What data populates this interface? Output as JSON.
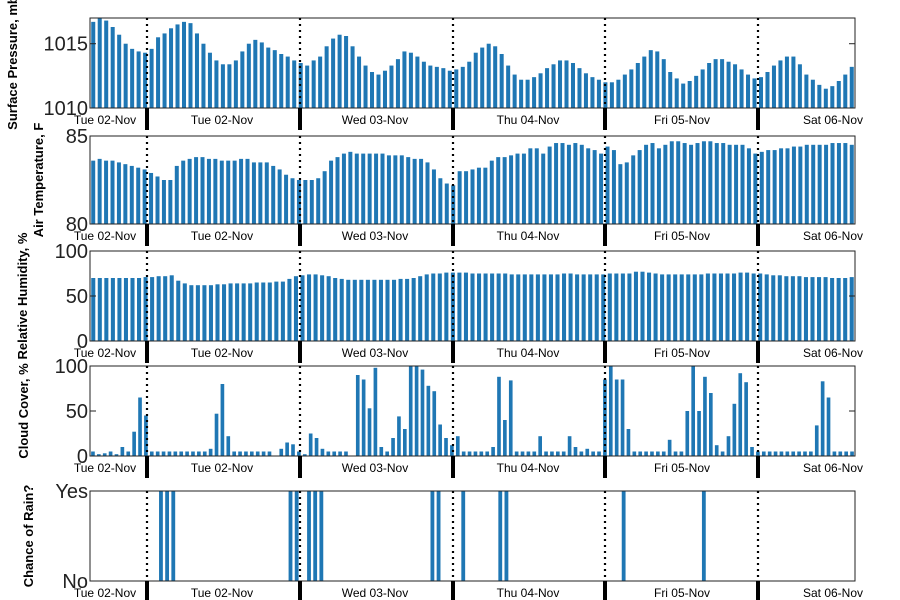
{
  "chart_data": [
    {
      "type": "bar",
      "ylabel": "Surface Pressure, mb",
      "ylim": [
        1010,
        1017
      ],
      "yticks": [
        {
          "value": 1010,
          "label": "1010"
        },
        {
          "value": 1015,
          "label": "1015"
        }
      ],
      "xticklabels": [
        "Tue 02-Nov",
        "Tue 02-Nov",
        "Wed 03-Nov",
        "Thu 04-Nov",
        "Fri 05-Nov",
        "Sat 06-Nov"
      ],
      "color": "#1f77b4",
      "values": [
        1016.7,
        1017.0,
        1016.8,
        1016.3,
        1015.7,
        1015.0,
        1014.6,
        1014.4,
        1014.3,
        1014.6,
        1015.5,
        1015.8,
        1016.2,
        1016.5,
        1016.7,
        1016.6,
        1015.8,
        1015.0,
        1014.3,
        1013.7,
        1013.4,
        1013.4,
        1013.7,
        1014.4,
        1015.0,
        1015.3,
        1015.1,
        1014.7,
        1014.5,
        1014.2,
        1014.0,
        1013.7,
        1013.5,
        1013.3,
        1013.7,
        1014.0,
        1014.8,
        1015.4,
        1015.7,
        1015.6,
        1014.8,
        1014.0,
        1013.3,
        1012.8,
        1012.6,
        1012.9,
        1013.3,
        1013.8,
        1014.4,
        1014.3,
        1014.0,
        1013.6,
        1013.3,
        1013.2,
        1013.1,
        1012.9,
        1013.0,
        1013.2,
        1013.6,
        1014.3,
        1014.7,
        1015.0,
        1014.8,
        1014.2,
        1013.3,
        1012.6,
        1012.2,
        1012.2,
        1012.4,
        1012.7,
        1013.1,
        1013.4,
        1013.7,
        1013.7,
        1013.5,
        1013.1,
        1012.7,
        1012.4,
        1012.2,
        1012.0,
        1012.0,
        1012.2,
        1012.6,
        1013.0,
        1013.5,
        1014.0,
        1014.5,
        1014.4,
        1013.8,
        1012.8,
        1012.3,
        1011.9,
        1012.1,
        1012.5,
        1013.0,
        1013.5,
        1013.8,
        1013.8,
        1013.6,
        1013.4,
        1013.0,
        1012.6,
        1012.3,
        1012.4,
        1012.8,
        1013.3,
        1013.7,
        1014.0,
        1014.0,
        1013.4,
        1012.6,
        1012.2,
        1011.8,
        1011.5,
        1011.7,
        1012.1,
        1012.6,
        1013.2
      ]
    },
    {
      "type": "bar",
      "ylabel": "Air Temperature, F",
      "ylim": [
        80,
        85
      ],
      "yticks": [
        {
          "value": 80,
          "label": "80"
        },
        {
          "value": 85,
          "label": "85"
        }
      ],
      "xticklabels": [
        "Tue 02-Nov",
        "Tue 02-Nov",
        "Wed 03-Nov",
        "Thu 04-Nov",
        "Fri 05-Nov",
        "Sat 06-Nov"
      ],
      "color": "#1f77b4",
      "values": [
        83.6,
        83.7,
        83.6,
        83.6,
        83.5,
        83.4,
        83.3,
        83.2,
        83.1,
        82.9,
        82.7,
        82.5,
        82.5,
        83.3,
        83.6,
        83.7,
        83.8,
        83.8,
        83.7,
        83.7,
        83.6,
        83.6,
        83.6,
        83.7,
        83.7,
        83.5,
        83.5,
        83.5,
        83.3,
        83.1,
        82.8,
        82.6,
        82.5,
        82.5,
        82.5,
        82.6,
        83.0,
        83.6,
        83.8,
        84.0,
        84.1,
        84.0,
        84.0,
        84.0,
        84.0,
        84.0,
        83.9,
        83.9,
        83.9,
        83.8,
        83.7,
        83.7,
        83.5,
        83.1,
        82.6,
        82.3,
        82.2,
        83.0,
        83.0,
        83.1,
        83.2,
        83.2,
        83.6,
        83.8,
        83.8,
        83.9,
        84.0,
        84.0,
        84.3,
        84.3,
        84.0,
        84.4,
        84.6,
        84.6,
        84.5,
        84.6,
        84.5,
        84.3,
        84.2,
        84.0,
        84.4,
        84.2,
        83.4,
        83.5,
        83.9,
        84.2,
        84.5,
        84.6,
        84.3,
        84.5,
        84.7,
        84.7,
        84.6,
        84.5,
        84.6,
        84.7,
        84.7,
        84.6,
        84.6,
        84.5,
        84.5,
        84.5,
        84.3,
        84.0,
        84.1,
        84.2,
        84.2,
        84.3,
        84.3,
        84.4,
        84.4,
        84.5,
        84.5,
        84.5,
        84.5,
        84.6,
        84.6,
        84.6,
        84.5
      ]
    },
    {
      "type": "bar",
      "ylabel": "Relative Humidity, %",
      "ylim": [
        0,
        100
      ],
      "yticks": [
        {
          "value": 0,
          "label": "0"
        },
        {
          "value": 50,
          "label": "50"
        },
        {
          "value": 100,
          "label": "100"
        }
      ],
      "xticklabels": [
        "Tue 02-Nov",
        "Tue 02-Nov",
        "Wed 03-Nov",
        "Thu 04-Nov",
        "Fri 05-Nov",
        "Sat 06-Nov"
      ],
      "color": "#1f77b4",
      "values": [
        70,
        70,
        70,
        70,
        70,
        70,
        70,
        70,
        71,
        71,
        72,
        72,
        73,
        67,
        64,
        62,
        62,
        62,
        62,
        63,
        63,
        64,
        64,
        64,
        64,
        65,
        65,
        65,
        66,
        66,
        69,
        72,
        73,
        74,
        74,
        73,
        72,
        70,
        69,
        68,
        68,
        68,
        68,
        68,
        68,
        68,
        68,
        69,
        69,
        70,
        72,
        74,
        75,
        75,
        76,
        76,
        76,
        76,
        75,
        75,
        75,
        75,
        75,
        75,
        74,
        74,
        74,
        74,
        74,
        74,
        74,
        74,
        75,
        75,
        74,
        74,
        74,
        74,
        74,
        75,
        75,
        75,
        75,
        77,
        77,
        76,
        75,
        74,
        74,
        74,
        74,
        74,
        74,
        74,
        75,
        75,
        75,
        75,
        75,
        76,
        76,
        75,
        75,
        74,
        73,
        73,
        72,
        72,
        72,
        71,
        71,
        71,
        71,
        70,
        70,
        70,
        71
      ]
    },
    {
      "type": "bar",
      "ylabel": "Cloud Cover, %",
      "ylim": [
        0,
        100
      ],
      "yticks": [
        {
          "value": 0,
          "label": "0"
        },
        {
          "value": 50,
          "label": "50"
        },
        {
          "value": 100,
          "label": "100"
        }
      ],
      "xticklabels": [
        "Tue 02-Nov",
        "Tue 02-Nov",
        "Wed 03-Nov",
        "Thu 04-Nov",
        "Fri 05-Nov",
        "Sat 06-Nov"
      ],
      "color": "#1f77b4",
      "values": [
        5,
        2,
        3,
        5,
        2,
        10,
        5,
        27,
        65,
        45,
        5,
        5,
        5,
        5,
        5,
        5,
        5,
        5,
        5,
        5,
        8,
        47,
        80,
        22,
        5,
        5,
        5,
        5,
        5,
        5,
        5,
        0,
        8,
        15,
        13,
        5,
        2,
        25,
        20,
        8,
        5,
        5,
        5,
        5,
        0,
        90,
        85,
        53,
        98,
        10,
        5,
        20,
        44,
        30,
        100,
        100,
        96,
        78,
        72,
        35,
        20,
        12,
        22,
        5,
        5,
        5,
        5,
        5,
        10,
        88,
        40,
        84,
        5,
        5,
        5,
        5,
        22,
        5,
        5,
        5,
        5,
        22,
        10,
        5,
        8,
        5,
        5,
        85,
        100,
        85,
        85,
        30,
        5,
        5,
        5,
        5,
        5,
        5,
        18,
        5,
        5,
        50,
        100,
        50,
        88,
        70,
        12,
        5,
        22,
        58,
        92,
        82,
        10,
        5,
        5,
        5,
        5,
        5,
        5,
        5,
        5,
        5,
        5,
        34,
        83,
        65,
        5,
        5,
        5,
        5
      ]
    },
    {
      "type": "bar",
      "ylabel": "Chance of Rain?",
      "ylim": [
        0,
        1
      ],
      "yticks": [
        {
          "value": 0,
          "label": "No"
        },
        {
          "value": 1,
          "label": "Yes"
        }
      ],
      "xticklabels": [
        "Tue 02-Nov",
        "Tue 02-Nov",
        "Wed 03-Nov",
        "Thu 04-Nov",
        "Fri 05-Nov",
        "Sat 06-Nov"
      ],
      "color": "#1f77b4",
      "values": [
        0,
        0,
        0,
        0,
        0,
        0,
        0,
        0,
        0,
        0,
        0,
        1,
        1,
        1,
        0,
        0,
        0,
        0,
        0,
        0,
        0,
        0,
        0,
        0,
        0,
        0,
        0,
        0,
        0,
        0,
        0,
        0,
        1,
        1,
        0,
        1,
        1,
        1,
        0,
        0,
        0,
        0,
        0,
        0,
        0,
        0,
        0,
        0,
        0,
        0,
        0,
        0,
        0,
        0,
        0,
        1,
        1,
        0,
        0,
        0,
        1,
        0,
        0,
        0,
        0,
        0,
        1,
        1,
        0,
        0,
        0,
        0,
        0,
        0,
        0,
        0,
        0,
        0,
        0,
        0,
        0,
        0,
        0,
        0,
        0,
        0,
        1,
        0,
        0,
        0,
        0,
        0,
        0,
        0,
        0,
        0,
        0,
        0,
        0,
        1,
        0,
        0,
        0,
        0,
        0,
        0,
        0,
        0,
        0,
        0,
        0,
        0,
        0,
        0,
        0,
        0,
        0,
        0,
        0,
        0,
        0,
        0,
        0,
        0
      ]
    }
  ]
}
